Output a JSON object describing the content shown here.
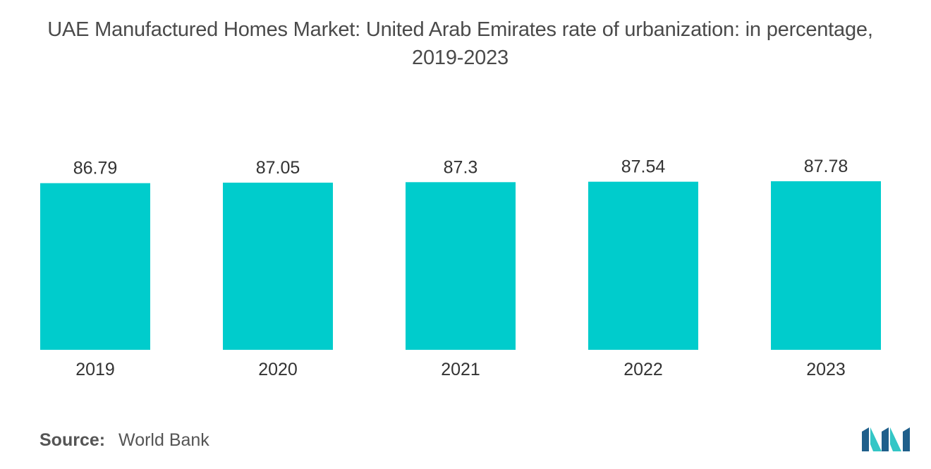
{
  "title_line1": "UAE Manufactured Homes Market: United Arab Emirates rate of urbanization: in percentage,",
  "title_line2": "2019-2023",
  "source": {
    "label": "Source:",
    "value": "World Bank"
  },
  "colors": {
    "bar": "#00cccc",
    "logo_dark": "#1f5f8b",
    "logo_light": "#33c6c6"
  },
  "chart_data": {
    "type": "bar",
    "categories": [
      "2019",
      "2020",
      "2021",
      "2022",
      "2023"
    ],
    "values": [
      86.79,
      87.05,
      87.3,
      87.54,
      87.78
    ],
    "data_labels": [
      "86.79",
      "87.05",
      "87.3",
      "87.54",
      "87.78"
    ],
    "title": "UAE Manufactured Homes Market: United Arab Emirates rate of urbanization: in percentage, 2019-2023",
    "xlabel": "",
    "ylabel": "",
    "ylim": [
      0,
      87.78
    ],
    "grid": false,
    "legend": "none"
  }
}
